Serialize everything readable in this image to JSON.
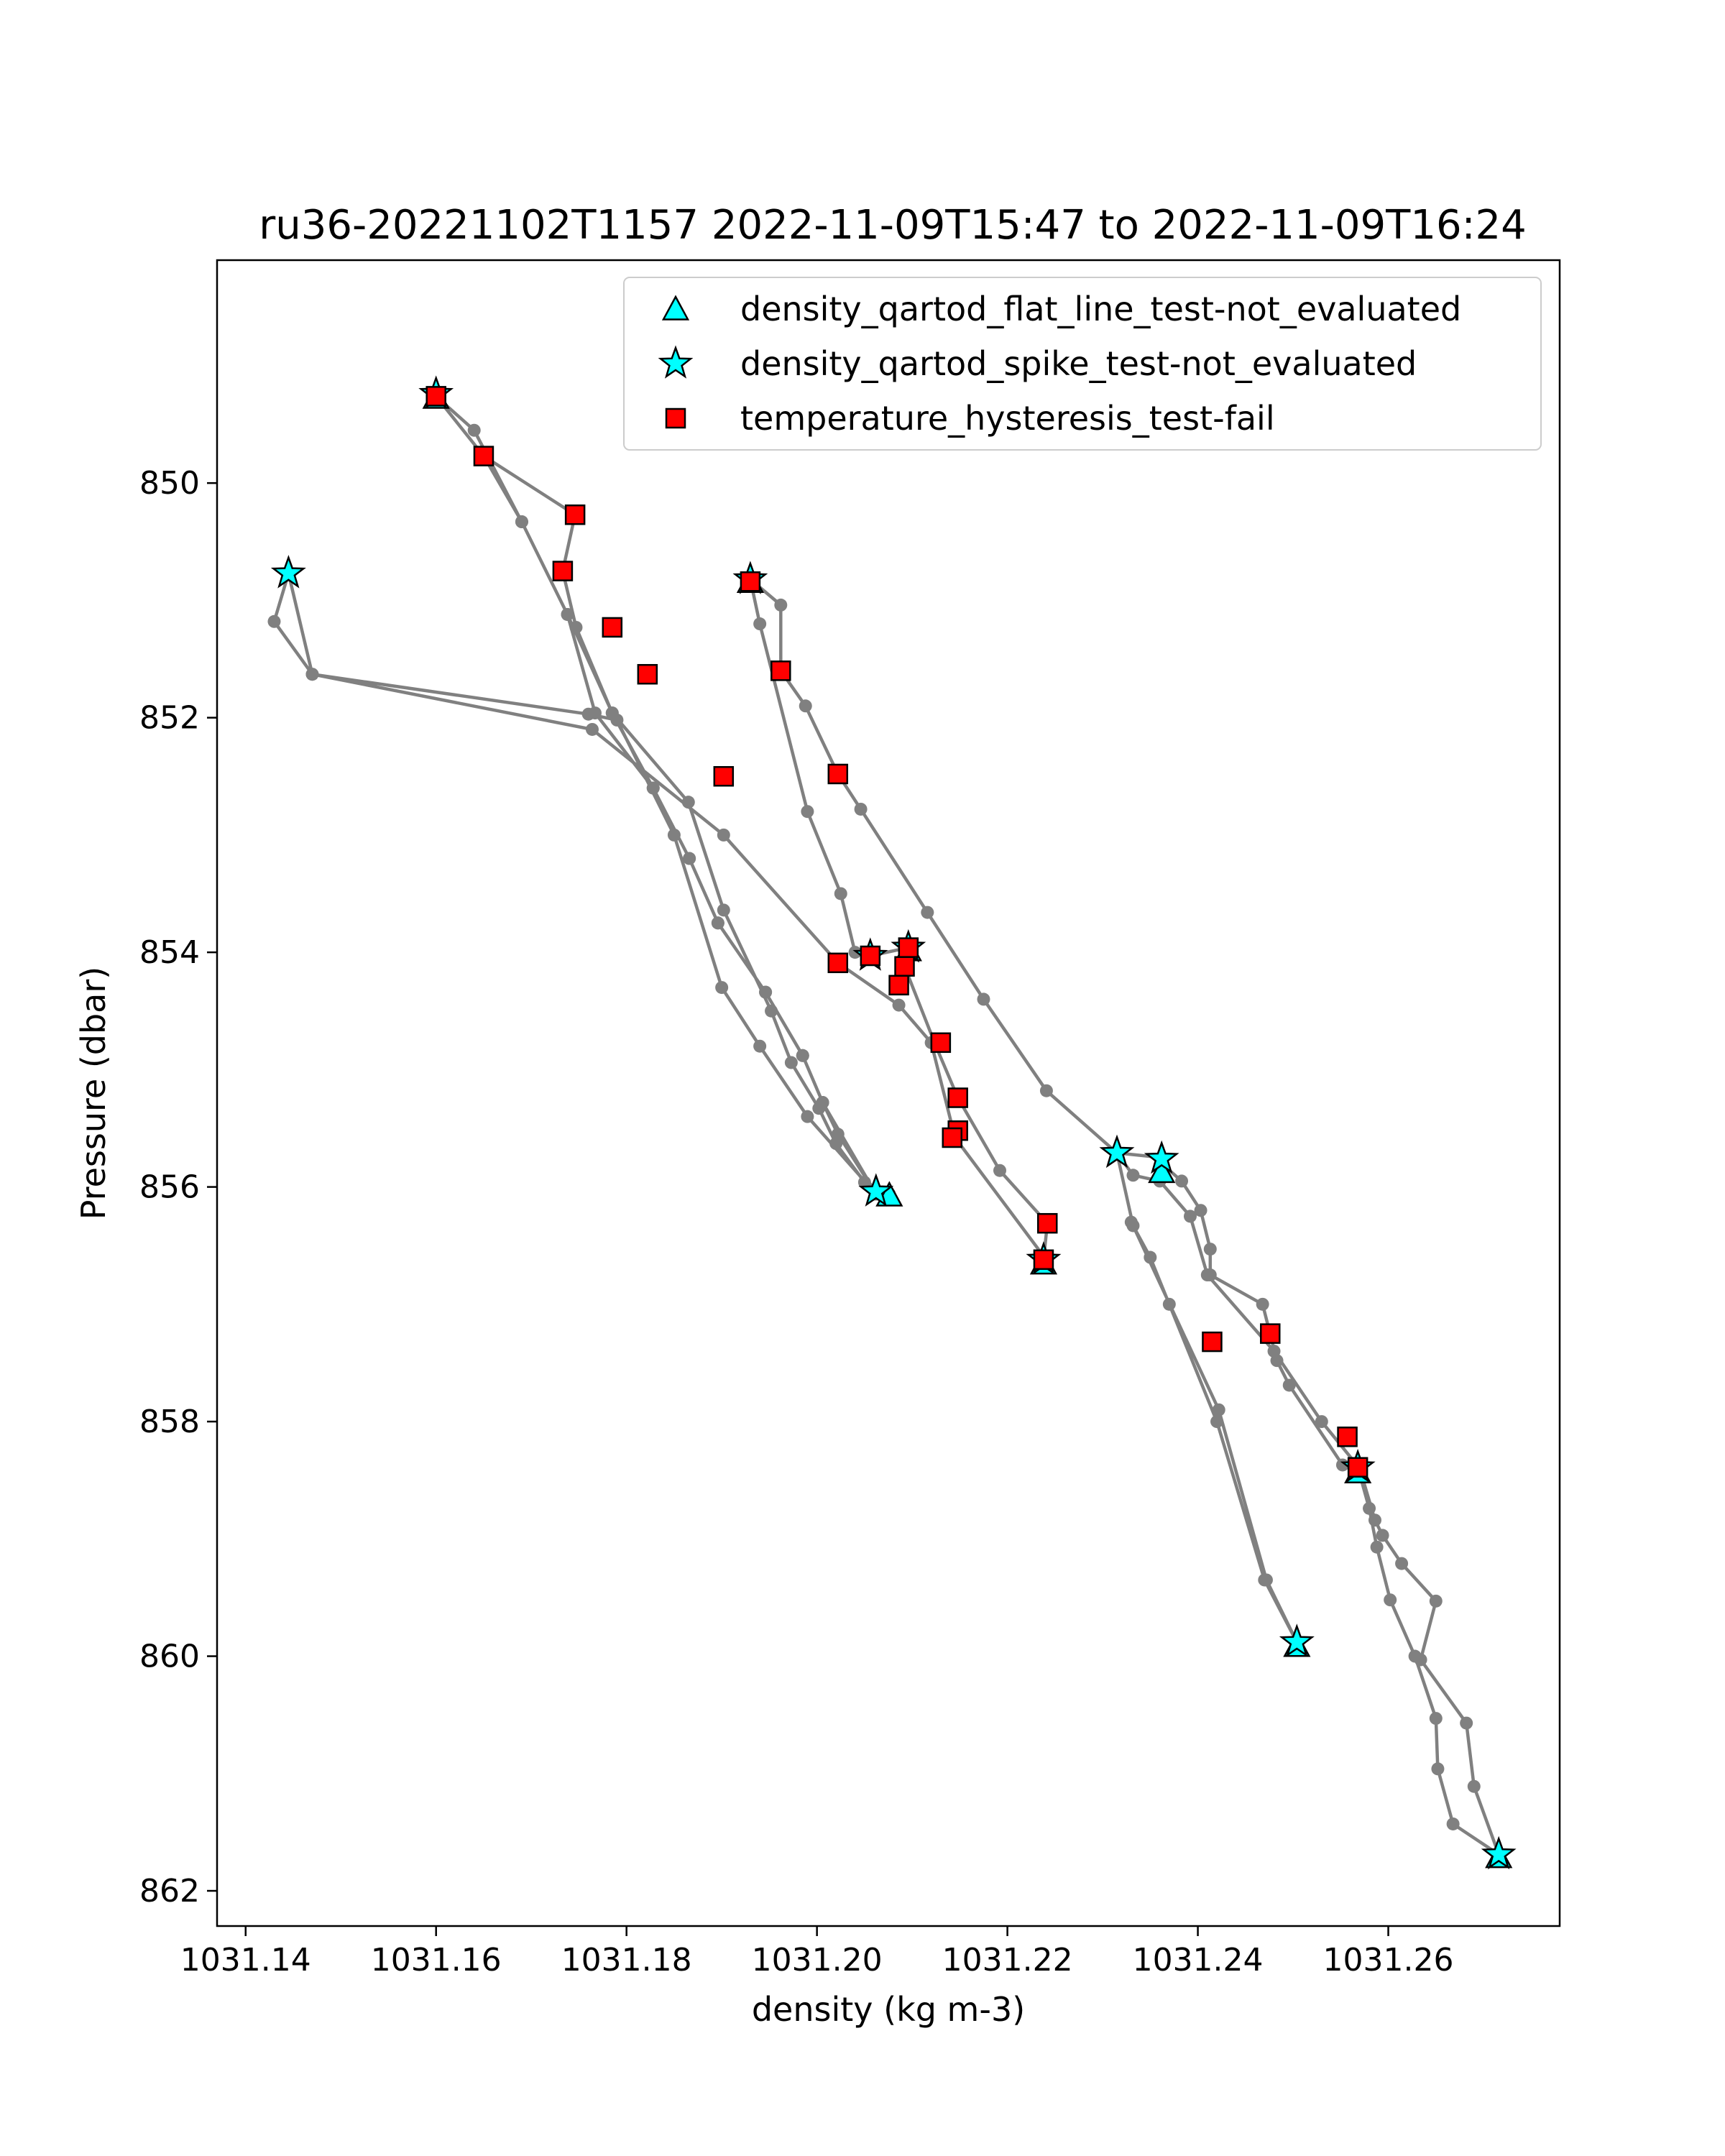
{
  "chart_data": {
    "type": "scatter",
    "title": "ru36-20221102T1157 2022-11-09T15:47 to 2022-11-09T16:24",
    "xlabel": "density (kg m-3)",
    "ylabel": "Pressure (dbar)",
    "xlim": [
      1031.137,
      1031.278
    ],
    "ylim": [
      862.3,
      848.1
    ],
    "y_inverted": true,
    "grid": false,
    "legend_position": "top-right",
    "x_ticks": [
      1031.14,
      1031.16,
      1031.18,
      1031.2,
      1031.22,
      1031.24,
      1031.26
    ],
    "x_tick_labels": [
      "1031.14",
      "1031.16",
      "1031.18",
      "1031.20",
      "1031.22",
      "1031.24",
      "1031.26"
    ],
    "y_ticks": [
      850,
      852,
      854,
      856,
      858,
      860,
      862
    ],
    "y_tick_labels": [
      "850",
      "852",
      "854",
      "856",
      "858",
      "860",
      "862"
    ],
    "profile": {
      "line_color": "#808080",
      "points": [
        [
          1031.16,
          849.26
        ],
        [
          1031.164,
          849.55
        ],
        [
          1031.169,
          850.33
        ],
        [
          1031.1738,
          851.12
        ],
        [
          1031.1767,
          851.96
        ],
        [
          1031.1828,
          852.6
        ],
        [
          1031.1866,
          853.2
        ],
        [
          1031.1896,
          853.75
        ],
        [
          1031.1946,
          854.34
        ],
        [
          1031.1985,
          854.88
        ],
        [
          1031.2006,
          855.28
        ],
        [
          1031.2022,
          855.55
        ],
        [
          1031.2062,
          856.06
        ],
        [
          1031.2076,
          856.06
        ],
        [
          1031.205,
          855.96
        ],
        [
          1031.202,
          855.63
        ],
        [
          1031.2002,
          855.33
        ],
        [
          1031.1973,
          854.94
        ],
        [
          1031.1952,
          854.5
        ],
        [
          1031.1902,
          853.64
        ],
        [
          1031.1865,
          852.72
        ],
        [
          1031.1785,
          851.96
        ],
        [
          1031.1747,
          851.23
        ],
        [
          1031.1733,
          850.75
        ],
        [
          1031.1746,
          850.27
        ],
        [
          1031.165,
          849.77
        ],
        [
          1031.16,
          849.26
        ],
        [
          1031.16,
          849.26
        ],
        [
          1031.165,
          849.77
        ],
        [
          1031.169,
          850.33
        ],
        [
          1031.1738,
          851.12
        ],
        [
          1031.1785,
          851.96
        ],
        [
          1031.1828,
          852.6
        ],
        [
          1031.1866,
          853.2
        ],
        [
          1031.1896,
          853.75
        ],
        [
          1031.1946,
          854.34
        ],
        [
          1031.1985,
          854.88
        ],
        [
          1031.2006,
          855.28
        ],
        [
          1031.2062,
          856.06
        ],
        [
          1031.2062,
          856.06
        ],
        [
          1031.199,
          855.4
        ],
        [
          1031.194,
          854.8
        ],
        [
          1031.19,
          854.3
        ],
        [
          1031.185,
          853.0
        ],
        [
          1031.179,
          852.02
        ],
        [
          1031.176,
          851.97
        ],
        [
          1031.147,
          851.63
        ],
        [
          1031.143,
          851.18
        ],
        [
          1031.1445,
          850.77
        ],
        [
          1031.1445,
          850.77
        ],
        [
          1031.147,
          851.63
        ],
        [
          1031.1764,
          852.1
        ],
        [
          1031.1902,
          853.0
        ],
        [
          1031.2022,
          854.09
        ],
        [
          1031.2086,
          854.45
        ],
        [
          1031.212,
          854.77
        ],
        [
          1031.2145,
          855.58
        ],
        [
          1031.2238,
          856.59
        ],
        [
          1031.2238,
          856.62
        ],
        [
          1031.2238,
          856.62
        ],
        [
          1031.2242,
          856.31
        ],
        [
          1031.2192,
          855.86
        ],
        [
          1031.2148,
          855.24
        ],
        [
          1031.2125,
          854.8
        ],
        [
          1031.2092,
          854.12
        ],
        [
          1031.2096,
          853.96
        ],
        [
          1031.2056,
          854.03
        ],
        [
          1031.204,
          854.0
        ],
        [
          1031.2025,
          853.5
        ],
        [
          1031.199,
          852.8
        ],
        [
          1031.194,
          851.2
        ],
        [
          1031.193,
          850.82
        ],
        [
          1031.193,
          850.82
        ],
        [
          1031.1962,
          851.04
        ],
        [
          1031.1962,
          851.6
        ],
        [
          1031.1988,
          851.9
        ],
        [
          1031.2022,
          852.48
        ],
        [
          1031.2046,
          852.78
        ],
        [
          1031.2116,
          853.66
        ],
        [
          1031.2175,
          854.4
        ],
        [
          1031.2241,
          855.18
        ],
        [
          1031.2315,
          855.71
        ],
        [
          1031.2362,
          855.75
        ],
        [
          1031.2362,
          855.8
        ],
        [
          1031.2383,
          855.95
        ],
        [
          1031.2403,
          856.2
        ],
        [
          1031.2413,
          856.53
        ],
        [
          1031.2413,
          856.75
        ],
        [
          1031.2468,
          857.0
        ],
        [
          1031.2483,
          857.48
        ],
        [
          1031.2496,
          857.69
        ],
        [
          1031.2552,
          858.37
        ],
        [
          1031.2568,
          858.39
        ],
        [
          1031.2568,
          858.39
        ],
        [
          1031.258,
          858.74
        ],
        [
          1031.2588,
          859.07
        ],
        [
          1031.2602,
          859.52
        ],
        [
          1031.2628,
          860.0
        ],
        [
          1031.265,
          860.53
        ],
        [
          1031.2652,
          860.96
        ],
        [
          1031.2668,
          861.43
        ],
        [
          1031.2716,
          861.69
        ],
        [
          1031.2716,
          861.69
        ],
        [
          1031.269,
          861.11
        ],
        [
          1031.2682,
          860.57
        ],
        [
          1031.2634,
          860.03
        ],
        [
          1031.265,
          859.53
        ],
        [
          1031.2614,
          859.21
        ],
        [
          1031.2594,
          858.97
        ],
        [
          1031.2586,
          858.84
        ],
        [
          1031.257,
          858.4
        ],
        [
          1031.253,
          858.0
        ],
        [
          1031.248,
          857.4
        ],
        [
          1031.241,
          856.75
        ],
        [
          1031.2392,
          856.25
        ],
        [
          1031.236,
          855.95
        ],
        [
          1031.2332,
          855.9
        ],
        [
          1031.2315,
          855.71
        ],
        [
          1031.2315,
          855.71
        ],
        [
          1031.2332,
          856.33
        ],
        [
          1031.2422,
          857.9
        ],
        [
          1031.2472,
          859.35
        ],
        [
          1031.2504,
          859.88
        ],
        [
          1031.2504,
          859.88
        ],
        [
          1031.247,
          859.35
        ],
        [
          1031.242,
          858.0
        ],
        [
          1031.237,
          857.0
        ],
        [
          1031.235,
          856.6
        ],
        [
          1031.233,
          856.3
        ]
      ]
    },
    "series": [
      {
        "name": "density_qartod_flat_line_test-not_evaluated",
        "marker": "triangle",
        "color": "#00ffff",
        "edgecolor": "#000000",
        "points": [
          [
            1031.16,
            849.27
          ],
          [
            1031.193,
            850.84
          ],
          [
            1031.2076,
            856.07
          ],
          [
            1031.2238,
            856.65
          ],
          [
            1031.2362,
            855.87
          ],
          [
            1031.2568,
            858.43
          ],
          [
            1031.2716,
            861.71
          ],
          [
            1031.2504,
            859.91
          ],
          [
            1031.2096,
            853.98
          ]
        ]
      },
      {
        "name": "density_qartod_spike_test-not_evaluated",
        "marker": "star",
        "color": "#00ffff",
        "edgecolor": "#000000",
        "points": [
          [
            1031.1445,
            850.77
          ],
          [
            1031.16,
            849.24
          ],
          [
            1031.193,
            850.82
          ],
          [
            1031.2062,
            856.04
          ],
          [
            1031.2238,
            856.62
          ],
          [
            1031.2315,
            855.71
          ],
          [
            1031.2362,
            855.76
          ],
          [
            1031.2096,
            853.96
          ],
          [
            1031.2568,
            858.39
          ],
          [
            1031.2504,
            859.88
          ],
          [
            1031.2716,
            861.69
          ],
          [
            1031.2056,
            854.03
          ]
        ]
      },
      {
        "name": "temperature_hysteresis_test-fail",
        "marker": "square",
        "color": "#ff0000",
        "edgecolor": "#000000",
        "points": [
          [
            1031.16,
            849.26
          ],
          [
            1031.165,
            849.77
          ],
          [
            1031.1746,
            850.27
          ],
          [
            1031.1733,
            850.75
          ],
          [
            1031.1785,
            851.23
          ],
          [
            1031.1822,
            851.63
          ],
          [
            1031.1902,
            852.5
          ],
          [
            1031.193,
            850.84
          ],
          [
            1031.1962,
            851.6
          ],
          [
            1031.2022,
            852.48
          ],
          [
            1031.2022,
            854.09
          ],
          [
            1031.2056,
            854.03
          ],
          [
            1031.2086,
            854.28
          ],
          [
            1031.2092,
            854.12
          ],
          [
            1031.2096,
            853.96
          ],
          [
            1031.213,
            854.77
          ],
          [
            1031.2148,
            855.24
          ],
          [
            1031.2148,
            855.52
          ],
          [
            1031.2142,
            855.58
          ],
          [
            1031.2242,
            856.31
          ],
          [
            1031.2238,
            856.62
          ],
          [
            1031.2415,
            857.32
          ],
          [
            1031.2476,
            857.25
          ],
          [
            1031.2557,
            858.13
          ],
          [
            1031.2568,
            858.39
          ]
        ]
      }
    ]
  }
}
